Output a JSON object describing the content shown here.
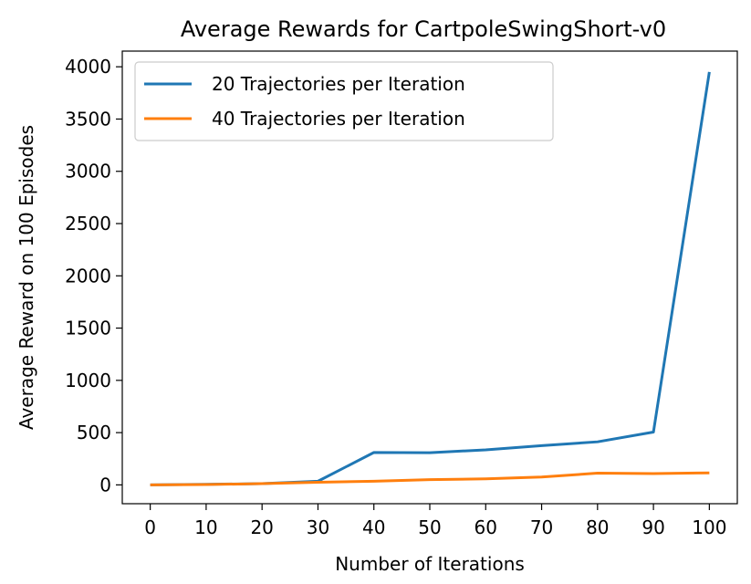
{
  "chart_data": {
    "type": "line",
    "title": "Average Rewards for CartpoleSwingShort-v0",
    "xlabel": "Number of Iterations",
    "ylabel": "Average Reward on 100 Episodes",
    "x": [
      0,
      10,
      20,
      30,
      40,
      50,
      60,
      70,
      80,
      90,
      100
    ],
    "xlim": [
      -5,
      105
    ],
    "ylim": [
      -180,
      4150
    ],
    "xticks": [
      "0",
      "10",
      "20",
      "30",
      "40",
      "50",
      "60",
      "70",
      "80",
      "90",
      "100"
    ],
    "yticks": [
      "0",
      "500",
      "1000",
      "1500",
      "2000",
      "2500",
      "3000",
      "3500",
      "4000"
    ],
    "grid": false,
    "legend_position": "top-left",
    "series": [
      {
        "name": "20 Trajectories per Iteration",
        "color": "#1f77b4",
        "values": [
          0,
          5,
          12,
          35,
          310,
          308,
          335,
          375,
          412,
          505,
          3950
        ]
      },
      {
        "name": "40 Trajectories per Iteration",
        "color": "#ff7f0e",
        "values": [
          0,
          3,
          12,
          25,
          35,
          50,
          58,
          75,
          112,
          108,
          115
        ]
      }
    ]
  }
}
